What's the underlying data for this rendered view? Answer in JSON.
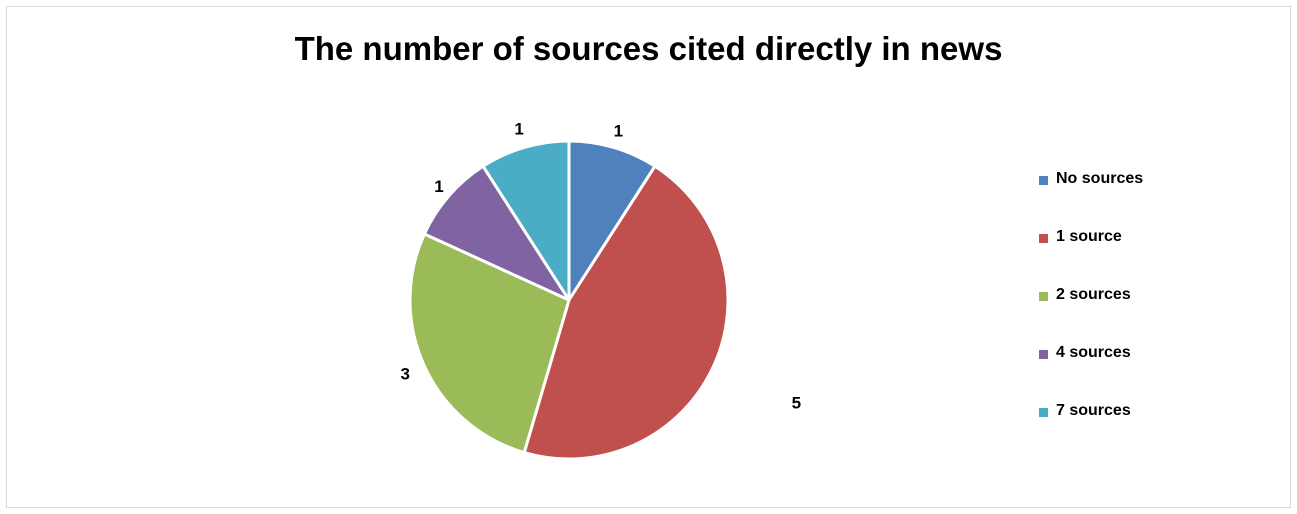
{
  "chart_data": {
    "type": "pie",
    "title": "The number of sources cited directly in news",
    "categories": [
      "No sources",
      "1 source",
      "2 sources",
      "4 sources",
      "7 sources"
    ],
    "values": [
      1,
      5,
      3,
      1,
      1
    ],
    "data_labels": [
      "1",
      "5",
      "3",
      "1",
      "1"
    ],
    "colors": [
      "#4f81bd",
      "#c0504d",
      "#9bbb59",
      "#8064a2",
      "#4bacc6"
    ],
    "legend_placement": "right",
    "start_angle": "12 o'clock",
    "direction": "clockwise"
  }
}
